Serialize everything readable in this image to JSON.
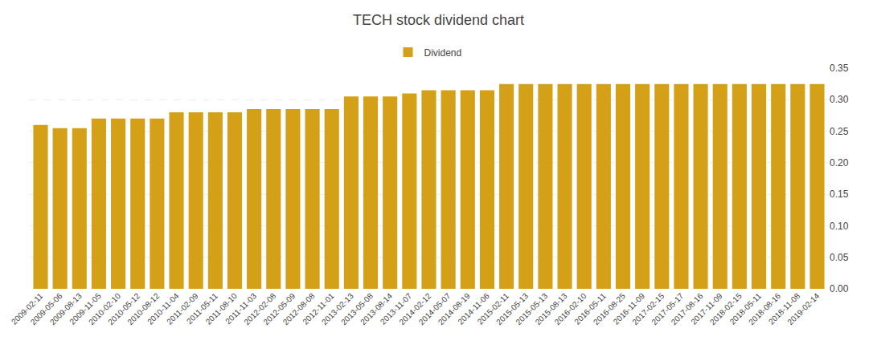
{
  "chart_data": {
    "type": "bar",
    "title": "TECH stock dividend chart",
    "categories": [
      "2009-02-11",
      "2009-05-06",
      "2009-08-13",
      "2009-11-05",
      "2010-02-10",
      "2010-05-12",
      "2010-08-12",
      "2010-11-04",
      "2011-02-09",
      "2011-05-11",
      "2011-08-10",
      "2011-11-03",
      "2012-02-08",
      "2012-05-09",
      "2012-08-08",
      "2012-11-01",
      "2013-02-13",
      "2013-05-08",
      "2013-08-14",
      "2013-11-07",
      "2014-02-12",
      "2014-05-07",
      "2014-08-19",
      "2014-11-06",
      "2015-02-11",
      "2015-05-13",
      "2015-05-13",
      "2015-08-13",
      "2016-02-10",
      "2016-05-11",
      "2016-08-25",
      "2016-11-09",
      "2017-02-15",
      "2017-05-17",
      "2017-08-16",
      "2017-11-09",
      "2018-02-15",
      "2018-05-11",
      "2018-08-16",
      "2018-11-08",
      "2019-02-14"
    ],
    "series": [
      {
        "name": "Dividend",
        "color": "#D4A017",
        "values": [
          0.26,
          0.255,
          0.255,
          0.27,
          0.27,
          0.27,
          0.27,
          0.28,
          0.28,
          0.28,
          0.28,
          0.285,
          0.285,
          0.285,
          0.285,
          0.285,
          0.305,
          0.305,
          0.305,
          0.31,
          0.315,
          0.315,
          0.315,
          0.315,
          0.325,
          0.325,
          0.325,
          0.325,
          0.325,
          0.325,
          0.325,
          0.325,
          0.325,
          0.325,
          0.325,
          0.325,
          0.325,
          0.325,
          0.325,
          0.325,
          0.325
        ]
      }
    ],
    "ylim": [
      0,
      0.35
    ],
    "yticks": [
      {
        "value": 0,
        "label": "0.00"
      },
      0.05,
      {
        "value": 0.1,
        "label": "0.10"
      },
      0.15,
      {
        "value": 0.2,
        "label": "0.20"
      },
      0.25,
      {
        "value": 0.3,
        "label": "0.30"
      },
      0.35
    ],
    "grid": true,
    "legend": "top"
  }
}
